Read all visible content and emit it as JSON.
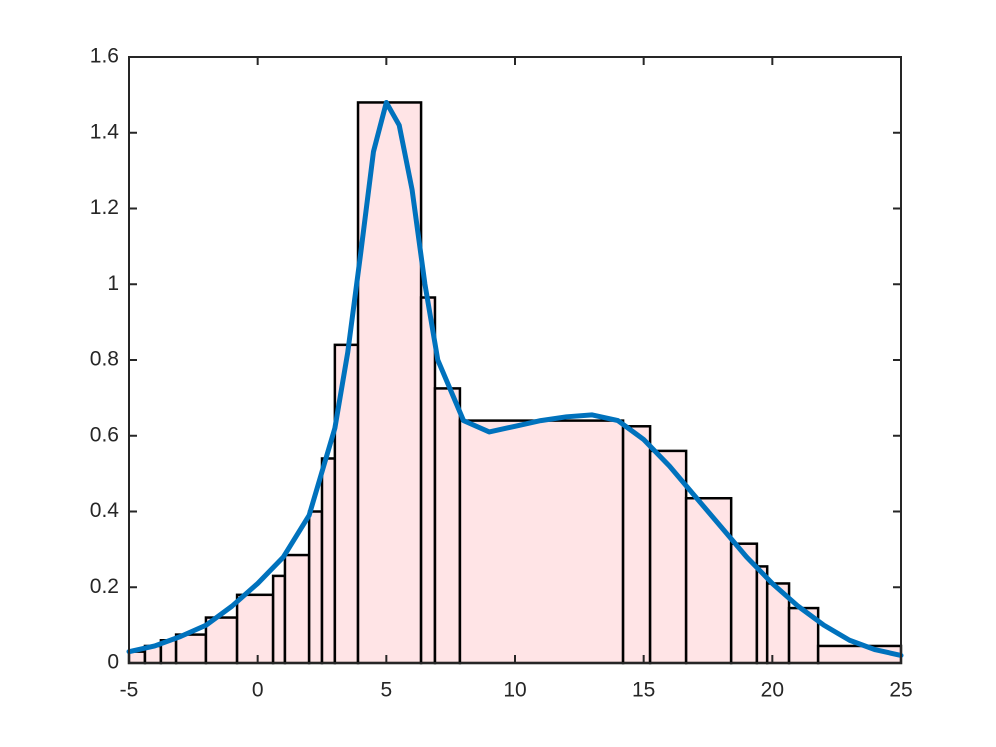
{
  "chart_data": {
    "type": "histogram",
    "bins": [
      -5,
      -4.38,
      -3.76,
      -3.17,
      -2.01,
      -0.8,
      0.6,
      1.06,
      2.0,
      2.5,
      3.0,
      3.9,
      6.35,
      6.89,
      7.86,
      14.2,
      15.25,
      16.65,
      18.4,
      19.4,
      19.8,
      20.65,
      21.78,
      25
    ],
    "values": [
      0.03,
      0.045,
      0.06,
      0.075,
      0.12,
      0.18,
      0.23,
      0.285,
      0.4,
      0.54,
      0.84,
      1.48,
      0.965,
      0.725,
      0.64,
      0.625,
      0.56,
      0.435,
      0.315,
      0.255,
      0.21,
      0.145,
      0.045
    ],
    "color": "#ffe4e6",
    "edge_color": "#000000",
    "lines": [
      {
        "color": "#0072bd",
        "x": [
          -5,
          -4,
          -3,
          -2,
          -1,
          0,
          1,
          2,
          3,
          3.5,
          4,
          4.5,
          5,
          5.5,
          6,
          6.5,
          7,
          8,
          9,
          10,
          11,
          12,
          13,
          14,
          15,
          16,
          17,
          18,
          19,
          20,
          21,
          22,
          23,
          24,
          25
        ],
        "values": [
          0.03,
          0.045,
          0.07,
          0.1,
          0.15,
          0.21,
          0.28,
          0.39,
          0.62,
          0.82,
          1.08,
          1.35,
          1.48,
          1.42,
          1.25,
          1.0,
          0.8,
          0.64,
          0.61,
          0.625,
          0.64,
          0.65,
          0.655,
          0.64,
          0.59,
          0.52,
          0.44,
          0.36,
          0.28,
          0.21,
          0.15,
          0.1,
          0.06,
          0.035,
          0.02
        ]
      }
    ],
    "xlim": [
      -5,
      25
    ],
    "ylim": [
      0,
      1.6
    ],
    "xticks": [
      -5,
      0,
      5,
      10,
      15,
      20,
      25
    ],
    "yticks": [
      0,
      0.2,
      0.4,
      0.6,
      0.8,
      1,
      1.2,
      1.4,
      1.6
    ],
    "grid": false
  }
}
